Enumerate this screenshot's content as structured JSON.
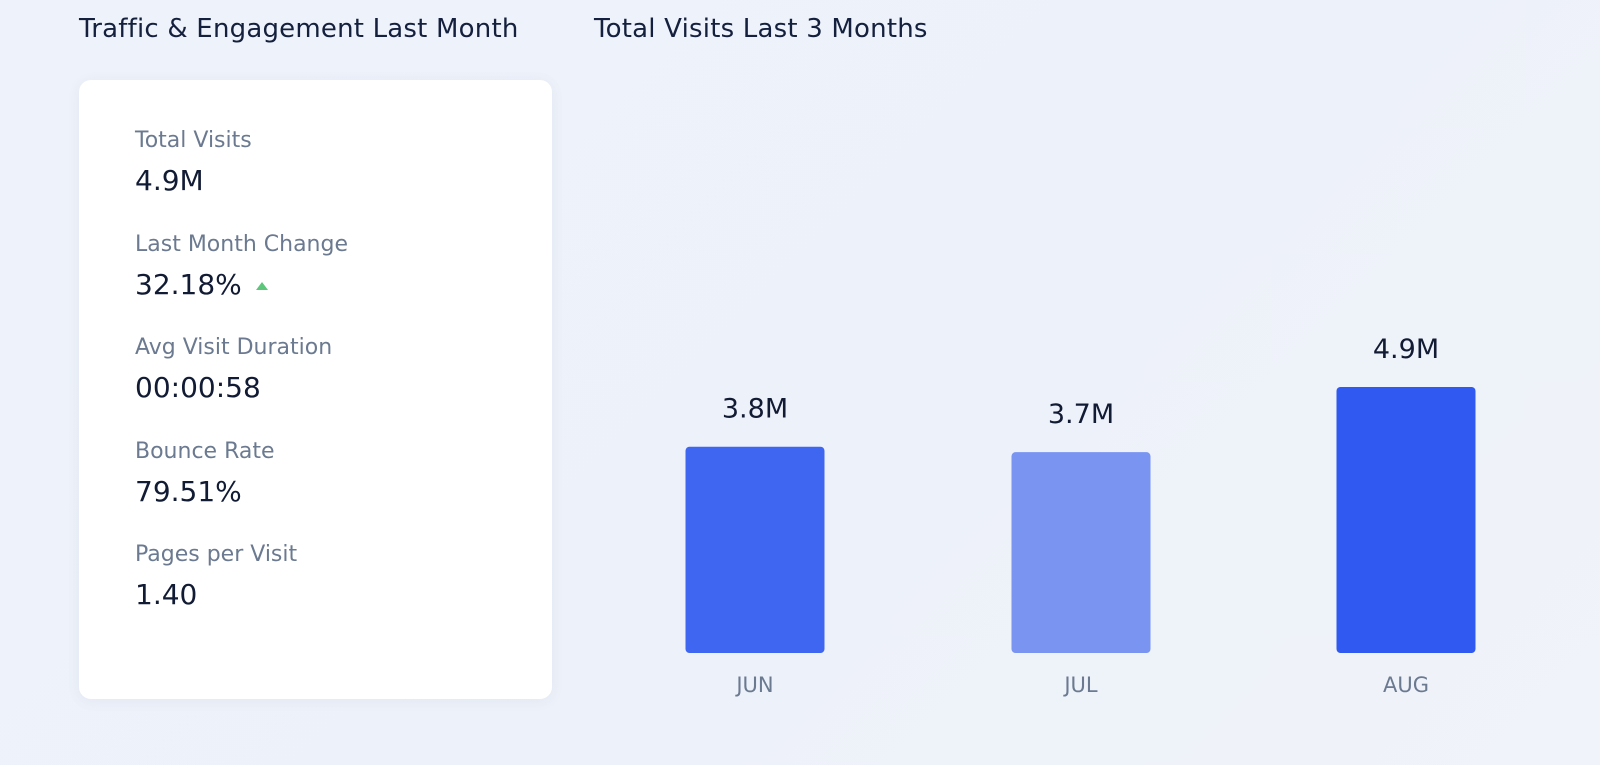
{
  "left_panel": {
    "title": "Traffic & Engagement Last Month",
    "metrics": [
      {
        "label": "Total Visits",
        "value": "4.9M"
      },
      {
        "label": "Last Month Change",
        "value": "32.18%",
        "trend_icon": "triangle-up-icon",
        "trend_color": "#5cc67a"
      },
      {
        "label": "Avg Visit Duration",
        "value": "00:00:58"
      },
      {
        "label": "Bounce Rate",
        "value": "79.51%"
      },
      {
        "label": "Pages per Visit",
        "value": "1.40"
      }
    ]
  },
  "right_panel": {
    "title": "Total Visits Last 3 Months"
  },
  "chart_data": {
    "type": "bar",
    "title": "Total Visits Last 3 Months",
    "categories": [
      "JUN",
      "JUL",
      "AUG"
    ],
    "values": [
      3.8,
      3.7,
      4.9
    ],
    "unit": "M",
    "value_labels": [
      "3.8M",
      "3.7M",
      "4.9M"
    ],
    "bar_colors": [
      "#3f66f0",
      "#7a94f2",
      "#2f59f0"
    ],
    "ylim": [
      0,
      4.9
    ],
    "grid": false,
    "legend": "none",
    "axes_visible": false
  }
}
